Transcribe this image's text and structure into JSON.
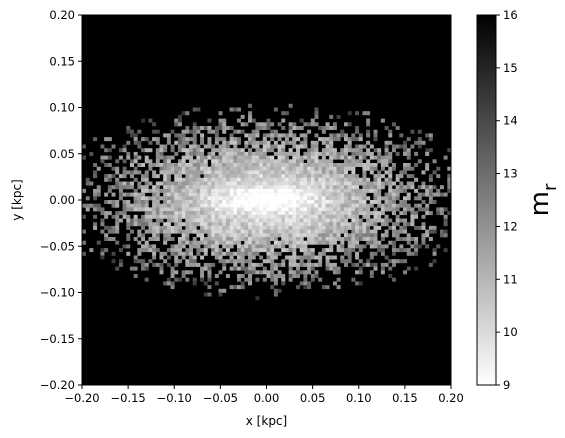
{
  "chart_data": {
    "type": "heatmap",
    "title": "",
    "xlabel": "x [kpc]",
    "ylabel": "y [kpc]",
    "xlim": [
      -0.2,
      0.2
    ],
    "ylim": [
      -0.2,
      0.2
    ],
    "xticks": [
      -0.2,
      -0.15,
      -0.1,
      -0.05,
      0.0,
      0.05,
      0.1,
      0.15,
      0.2
    ],
    "xtick_labels": [
      "−0.20",
      "−0.15",
      "−0.10",
      "−0.05",
      "0.00",
      "0.05",
      "0.10",
      "0.15",
      "0.20"
    ],
    "yticks": [
      0.2,
      0.15,
      0.1,
      0.05,
      0.0,
      -0.05,
      -0.1,
      -0.15,
      -0.2
    ],
    "ytick_labels": [
      "0.20",
      "0.15",
      "0.10",
      "0.05",
      "0.00",
      "−0.05",
      "−0.10",
      "−0.15",
      "−0.20"
    ],
    "colorbar": {
      "label": "m",
      "label_subscript": "r",
      "min": 9,
      "max": 16,
      "ticks": [
        16,
        15,
        14,
        13,
        12,
        11,
        10,
        9
      ],
      "tick_labels": [
        "16",
        "15",
        "14",
        "13",
        "12",
        "11",
        "10",
        "9"
      ],
      "colormap": "gray",
      "low_value_color": "#ffffff",
      "high_value_color": "#000000"
    },
    "distribution": {
      "description_value": "elongated disc-like surface brightness map centered at origin",
      "center_x": 0.0,
      "center_y": 0.0,
      "bins": 100,
      "center_value": 9.0,
      "background_value": 16.0
    },
    "grid": false
  }
}
